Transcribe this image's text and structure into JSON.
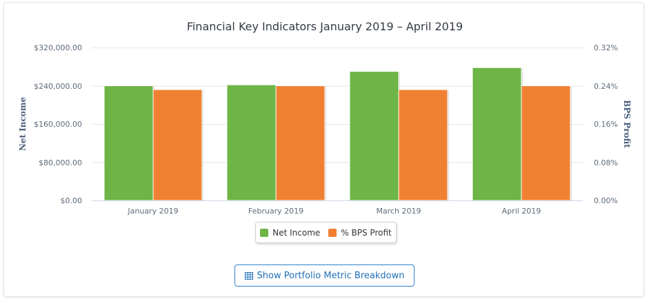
{
  "chart_data": {
    "type": "bar",
    "title": "Financial Key Indicators January 2019 – April 2019",
    "categories": [
      "January 2019",
      "February 2019",
      "March 2019",
      "April 2019"
    ],
    "series": [
      {
        "name": "Net Income",
        "axis": "left",
        "color": "#6db546",
        "values": [
          240000,
          242000,
          270000,
          278000
        ]
      },
      {
        "name": "% BPS Profit",
        "axis": "right",
        "color": "#f08133",
        "values": [
          0.232,
          0.24,
          0.232,
          0.24
        ]
      }
    ],
    "ylabel": "Net Income",
    "ylabel_right": "BPS Profit",
    "ylim": [
      0,
      320000
    ],
    "ylim_right": [
      0,
      0.32
    ],
    "yticks": [
      "$0.00",
      "$80,000.00",
      "$160,000.00",
      "$240,000.00",
      "$320,000.00"
    ],
    "yticks_right": [
      "0.00%",
      "0.08%",
      "0.16%",
      "0.24%",
      "0.32%"
    ],
    "grid": true,
    "legend": "bottom-center"
  },
  "button": {
    "label": "Show Portfolio Metric Breakdown",
    "icon": "table-icon",
    "color": "#1f6fb8"
  }
}
